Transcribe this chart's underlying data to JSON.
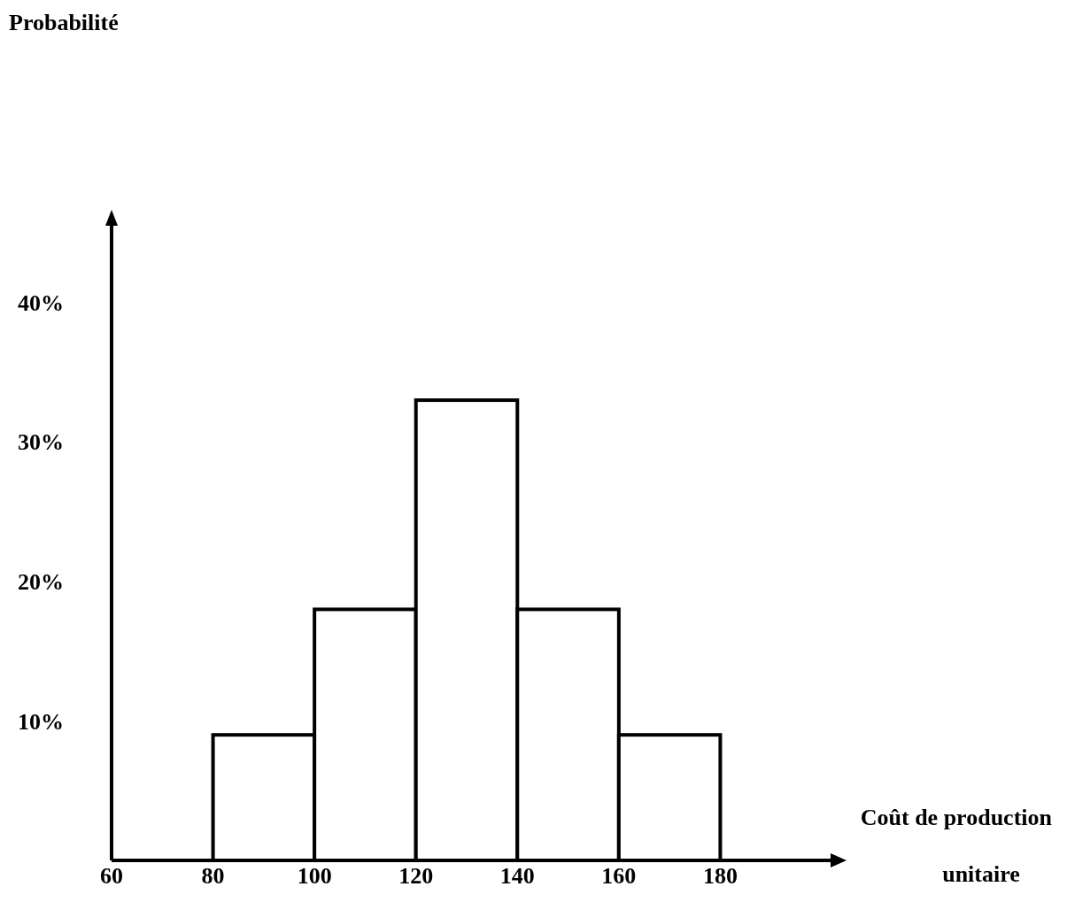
{
  "chart_data": {
    "type": "histogram",
    "annotations": [
      "Probabilité"
    ],
    "xlabel": "Coût de production unitaire",
    "bins": [
      80,
      100,
      120,
      140,
      160,
      180
    ],
    "values": [
      9,
      18,
      33,
      18,
      9
    ],
    "color": "#ffffff",
    "xlim": [
      60,
      200
    ],
    "xticks": [
      60,
      80,
      100,
      120,
      140,
      160,
      180
    ],
    "ylim": [
      0,
      45
    ],
    "yticks": [
      {
        "value": 10,
        "label": "10%"
      },
      {
        "value": 20,
        "label": "20%"
      },
      {
        "value": 30,
        "label": "30%"
      },
      {
        "value": 40,
        "label": "40%"
      }
    ],
    "grid": false
  }
}
